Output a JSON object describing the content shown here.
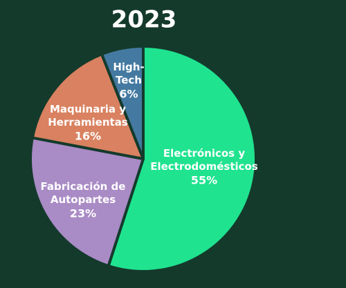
{
  "chart_data": {
    "type": "pie",
    "title": "2023",
    "categories": [
      [
        "Electrónicos y",
        "Electrodomésticos"
      ],
      [
        "Fabricación de",
        "Autopartes"
      ],
      [
        "Maquinaria y",
        "Herramientas"
      ],
      [
        "High-",
        "Tech"
      ]
    ],
    "values": [
      55,
      23,
      16,
      6
    ],
    "value_labels": [
      "55%",
      "23%",
      "16%",
      "6%"
    ],
    "colors": [
      "#1fe38f",
      "#a98bc5",
      "#d98160",
      "#447aa1"
    ]
  }
}
